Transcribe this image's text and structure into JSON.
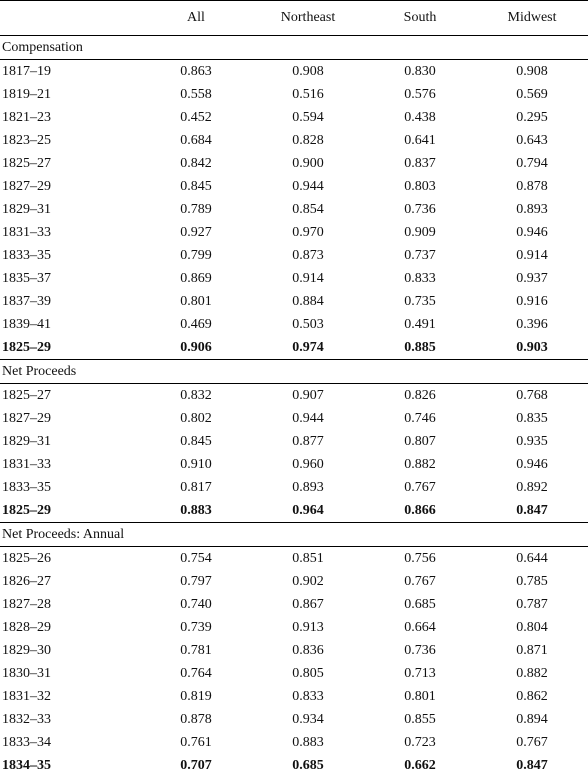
{
  "table": {
    "columns": [
      "All",
      "Northeast",
      "South",
      "Midwest"
    ],
    "sections": [
      {
        "title": "Compensation",
        "rows": [
          {
            "label": "1817–19",
            "values": [
              "0.863",
              "0.908",
              "0.830",
              "0.908"
            ]
          },
          {
            "label": "1819–21",
            "values": [
              "0.558",
              "0.516",
              "0.576",
              "0.569"
            ]
          },
          {
            "label": "1821–23",
            "values": [
              "0.452",
              "0.594",
              "0.438",
              "0.295"
            ]
          },
          {
            "label": "1823–25",
            "values": [
              "0.684",
              "0.828",
              "0.641",
              "0.643"
            ]
          },
          {
            "label": "1825–27",
            "values": [
              "0.842",
              "0.900",
              "0.837",
              "0.794"
            ]
          },
          {
            "label": "1827–29",
            "values": [
              "0.845",
              "0.944",
              "0.803",
              "0.878"
            ]
          },
          {
            "label": "1829–31",
            "values": [
              "0.789",
              "0.854",
              "0.736",
              "0.893"
            ]
          },
          {
            "label": "1831–33",
            "values": [
              "0.927",
              "0.970",
              "0.909",
              "0.946"
            ]
          },
          {
            "label": "1833–35",
            "values": [
              "0.799",
              "0.873",
              "0.737",
              "0.914"
            ]
          },
          {
            "label": "1835–37",
            "values": [
              "0.869",
              "0.914",
              "0.833",
              "0.937"
            ]
          },
          {
            "label": "1837–39",
            "values": [
              "0.801",
              "0.884",
              "0.735",
              "0.916"
            ]
          },
          {
            "label": "1839–41",
            "values": [
              "0.469",
              "0.503",
              "0.491",
              "0.396"
            ]
          },
          {
            "label": "1825–29",
            "values": [
              "0.906",
              "0.974",
              "0.885",
              "0.903"
            ]
          }
        ]
      },
      {
        "title": "Net Proceeds",
        "rows": [
          {
            "label": "1825–27",
            "values": [
              "0.832",
              "0.907",
              "0.826",
              "0.768"
            ]
          },
          {
            "label": "1827–29",
            "values": [
              "0.802",
              "0.944",
              "0.746",
              "0.835"
            ]
          },
          {
            "label": "1829–31",
            "values": [
              "0.845",
              "0.877",
              "0.807",
              "0.935"
            ]
          },
          {
            "label": "1831–33",
            "values": [
              "0.910",
              "0.960",
              "0.882",
              "0.946"
            ]
          },
          {
            "label": "1833–35",
            "values": [
              "0.817",
              "0.893",
              "0.767",
              "0.892"
            ]
          },
          {
            "label": "1825–29",
            "values": [
              "0.883",
              "0.964",
              "0.866",
              "0.847"
            ]
          }
        ]
      },
      {
        "title": "Net Proceeds: Annual",
        "rows": [
          {
            "label": "1825–26",
            "values": [
              "0.754",
              "0.851",
              "0.756",
              "0.644"
            ]
          },
          {
            "label": "1826–27",
            "values": [
              "0.797",
              "0.902",
              "0.767",
              "0.785"
            ]
          },
          {
            "label": "1827–28",
            "values": [
              "0.740",
              "0.867",
              "0.685",
              "0.787"
            ]
          },
          {
            "label": "1828–29",
            "values": [
              "0.739",
              "0.913",
              "0.664",
              "0.804"
            ]
          },
          {
            "label": "1829–30",
            "values": [
              "0.781",
              "0.836",
              "0.736",
              "0.871"
            ]
          },
          {
            "label": "1830–31",
            "values": [
              "0.764",
              "0.805",
              "0.713",
              "0.882"
            ]
          },
          {
            "label": "1831–32",
            "values": [
              "0.819",
              "0.833",
              "0.801",
              "0.862"
            ]
          },
          {
            "label": "1832–33",
            "values": [
              "0.878",
              "0.934",
              "0.855",
              "0.894"
            ]
          },
          {
            "label": "1833–34",
            "values": [
              "0.761",
              "0.883",
              "0.723",
              "0.767"
            ]
          },
          {
            "label": "1834–35",
            "values": [
              "0.707",
              "0.685",
              "0.662",
              "0.847"
            ]
          }
        ]
      }
    ]
  }
}
